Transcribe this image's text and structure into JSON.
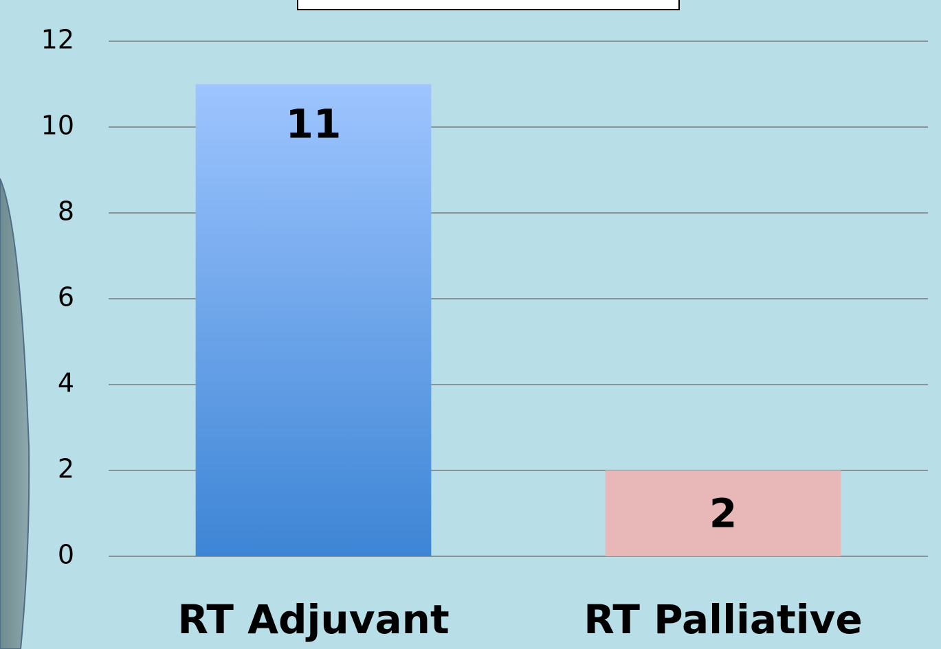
{
  "chart_data": {
    "type": "bar",
    "categories": [
      "RT Adjuvant",
      "RT Palliative"
    ],
    "values": [
      11,
      2
    ],
    "colors": [
      [
        "#9ec5ff",
        "#3d85d5"
      ],
      [
        "#e8b7b7",
        "#e8b7b7"
      ]
    ],
    "ylim": [
      0,
      12
    ],
    "yticks": [
      0,
      2,
      4,
      6,
      8,
      10,
      12
    ],
    "grid": true
  }
}
